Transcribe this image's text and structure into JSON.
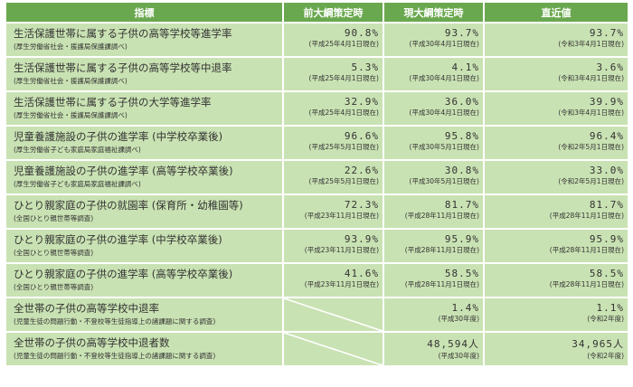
{
  "headers": [
    "指標",
    "前大綱策定時",
    "現大綱策定時",
    "直近値"
  ],
  "rows": [
    {
      "title": "生活保護世帯に属する子供の高等学校等進学率",
      "source": "(厚生労働省社会・援護局保護課調べ)",
      "prev": {
        "value": "90.8%",
        "date": "(平成25年4月1日現在)"
      },
      "curr": {
        "value": "93.7%",
        "date": "(平成30年4月1日現在)"
      },
      "latest": {
        "value": "93.7%",
        "date": "(令和3年4月1日現在)"
      }
    },
    {
      "title": "生活保護世帯に属する子供の高等学校等中退率",
      "source": "(厚生労働省社会・援護局保護課調べ)",
      "prev": {
        "value": "5.3%",
        "date": "(平成25年4月1日現在)"
      },
      "curr": {
        "value": "4.1%",
        "date": "(平成30年4月1日現在)"
      },
      "latest": {
        "value": "3.6%",
        "date": "(令和3年4月1日現在)"
      }
    },
    {
      "title": "生活保護世帯に属する子供の大学等進学率",
      "source": "(厚生労働省社会・援護局保護課調べ)",
      "prev": {
        "value": "32.9%",
        "date": "(平成25年4月1日現在)"
      },
      "curr": {
        "value": "36.0%",
        "date": "(平成30年4月1日現在)"
      },
      "latest": {
        "value": "39.9%",
        "date": "(令和3年4月1日現在)"
      }
    },
    {
      "title": "児童養護施設の子供の進学率 (中学校卒業後)",
      "source": "(厚生労働省子ども家庭局家庭福祉課調べ)",
      "prev": {
        "value": "96.6%",
        "date": "(平成25年5月1日現在)"
      },
      "curr": {
        "value": "95.8%",
        "date": "(平成30年5月1日現在)"
      },
      "latest": {
        "value": "96.4%",
        "date": "(令和2年5月1日現在)"
      }
    },
    {
      "title": "児童養護施設の子供の進学率 (高等学校卒業後)",
      "source": "(厚生労働省子ども家庭局家庭福祉課調べ)",
      "prev": {
        "value": "22.6%",
        "date": "(平成25年5月1日現在)"
      },
      "curr": {
        "value": "30.8%",
        "date": "(平成30年5月1日現在)"
      },
      "latest": {
        "value": "33.0%",
        "date": "(令和2年5月1日現在)"
      }
    },
    {
      "title": "ひとり親家庭の子供の就園率 (保育所・幼稚園等)",
      "source": "(全国ひとり親世帯等調査)",
      "prev": {
        "value": "72.3%",
        "date": "(平成23年11月1日現在)"
      },
      "curr": {
        "value": "81.7%",
        "date": "(平成28年11月1日現在)"
      },
      "latest": {
        "value": "81.7%",
        "date": "(平成28年11月1日現在)"
      }
    },
    {
      "title": "ひとり親家庭の子供の進学率 (中学校卒業後)",
      "source": "(全国ひとり親世帯等調査)",
      "prev": {
        "value": "93.9%",
        "date": "(平成23年11月1日現在)"
      },
      "curr": {
        "value": "95.9%",
        "date": "(平成28年11月1日現在)"
      },
      "latest": {
        "value": "95.9%",
        "date": "(平成28年11月1日現在)"
      }
    },
    {
      "title": "ひとり親家庭の子供の進学率 (高等学校卒業後)",
      "source": "(全国ひとり親世帯等調査)",
      "prev": {
        "value": "41.6%",
        "date": "(平成23年11月1日現在)"
      },
      "curr": {
        "value": "58.5%",
        "date": "(平成28年11月1日現在)"
      },
      "latest": {
        "value": "58.5%",
        "date": "(平成28年11月1日現在)"
      }
    },
    {
      "title": "全世帯の子供の高等学校中退率",
      "source": "(児童生徒の問題行動・不登校等生徒指導上の諸課題に関する調査)",
      "prev": null,
      "curr": {
        "value": "1.4%",
        "date": "(平成30年度)"
      },
      "latest": {
        "value": "1.1%",
        "date": "(令和2年度)"
      }
    },
    {
      "title": "全世帯の子供の高等学校中退者数",
      "source": "(児童生徒の問題行動・不登校等生徒指導上の諸課題に関する調査)",
      "prev": null,
      "curr": {
        "value": "48,594人",
        "date": "(平成30年度)"
      },
      "latest": {
        "value": "34,965人",
        "date": "(令和2年度)"
      }
    }
  ]
}
